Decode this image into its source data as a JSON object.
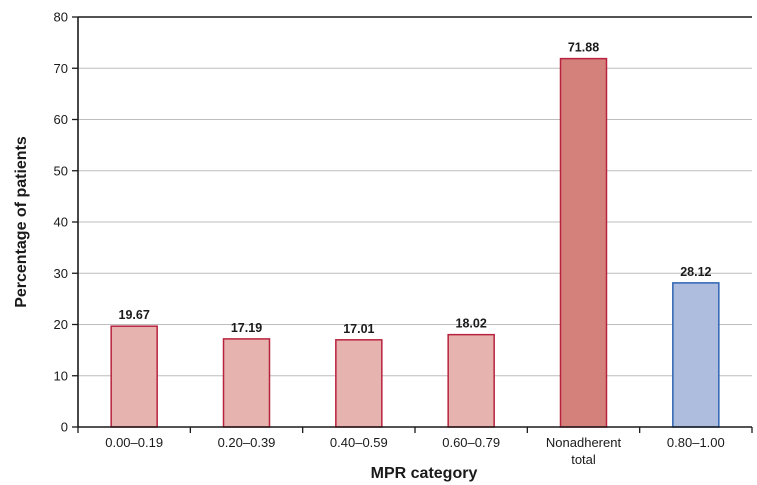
{
  "chart_data": {
    "type": "bar",
    "xlabel": "MPR category",
    "ylabel": "Percentage of patients",
    "ylim": [
      0,
      80
    ],
    "yticks": [
      0,
      10,
      20,
      30,
      40,
      50,
      60,
      70,
      80
    ],
    "grid": true,
    "categories": [
      [
        "0.00–0.19"
      ],
      [
        "0.20–0.39"
      ],
      [
        "0.40–0.59"
      ],
      [
        "0.60–0.79"
      ],
      [
        "Nonadherent",
        "total"
      ],
      [
        "0.80–1.00"
      ]
    ],
    "values": [
      19.67,
      17.19,
      17.01,
      18.02,
      71.88,
      28.12
    ],
    "value_labels": [
      "19.67",
      "17.19",
      "17.01",
      "18.02",
      "71.88",
      "28.12"
    ],
    "bar_fill_colors": [
      "#e6b3ae",
      "#e6b3ae",
      "#e6b3ae",
      "#e6b3ae",
      "#d4817c",
      "#aebcde"
    ],
    "bar_stroke_colors": [
      "#b8223f",
      "#b8223f",
      "#b8223f",
      "#b8223f",
      "#b8223f",
      "#2e64b4"
    ],
    "grid_color": "#bdbdbd",
    "axis_color": "#1a1a1a"
  }
}
